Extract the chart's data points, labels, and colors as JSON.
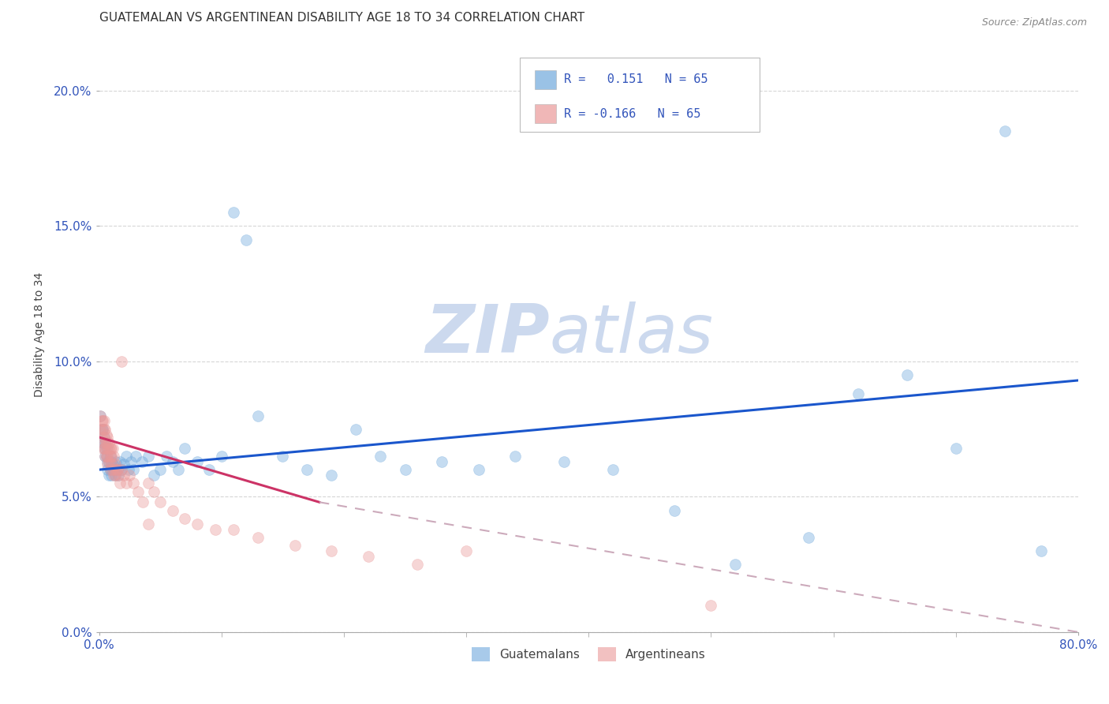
{
  "title": "GUATEMALAN VS ARGENTINEAN DISABILITY AGE 18 TO 34 CORRELATION CHART",
  "source": "Source: ZipAtlas.com",
  "ylabel": "Disability Age 18 to 34",
  "xlim": [
    0,
    0.8
  ],
  "ylim": [
    0,
    0.22
  ],
  "xticks": [
    0.0,
    0.8
  ],
  "xticklabels": [
    "0.0%",
    "80.0%"
  ],
  "yticks": [
    0.0,
    0.05,
    0.1,
    0.15,
    0.2
  ],
  "yticklabels": [
    "0.0%",
    "5.0%",
    "10.0%",
    "15.0%",
    "20.0%"
  ],
  "guatemalan_color": "#6fa8dc",
  "argentinean_color": "#ea9999",
  "guatemalan_trend_color": "#1a56cc",
  "argentinean_trend_color": "#cc3366",
  "argentinean_trend_dashed_color": "#ccaabb",
  "background_color": "#ffffff",
  "grid_color": "#cccccc",
  "watermark_zip": "ZIP",
  "watermark_atlas": "atlas",
  "watermark_color": "#ccd9ee",
  "r_guatemalan": 0.151,
  "n_guatemalan": 65,
  "r_argentinean": -0.166,
  "n_argentinean": 65,
  "guatemalan_x": [
    0.001,
    0.002,
    0.003,
    0.003,
    0.004,
    0.004,
    0.005,
    0.005,
    0.006,
    0.006,
    0.007,
    0.007,
    0.008,
    0.008,
    0.009,
    0.009,
    0.01,
    0.01,
    0.011,
    0.012,
    0.013,
    0.014,
    0.015,
    0.016,
    0.017,
    0.018,
    0.02,
    0.022,
    0.024,
    0.026,
    0.028,
    0.03,
    0.035,
    0.04,
    0.045,
    0.05,
    0.055,
    0.06,
    0.065,
    0.07,
    0.08,
    0.09,
    0.1,
    0.11,
    0.12,
    0.13,
    0.15,
    0.17,
    0.19,
    0.21,
    0.23,
    0.25,
    0.28,
    0.31,
    0.34,
    0.38,
    0.42,
    0.47,
    0.52,
    0.58,
    0.62,
    0.66,
    0.7,
    0.74,
    0.77
  ],
  "guatemalan_y": [
    0.08,
    0.075,
    0.075,
    0.07,
    0.072,
    0.068,
    0.07,
    0.065,
    0.068,
    0.065,
    0.063,
    0.06,
    0.063,
    0.058,
    0.065,
    0.06,
    0.063,
    0.058,
    0.062,
    0.06,
    0.058,
    0.063,
    0.06,
    0.058,
    0.063,
    0.06,
    0.062,
    0.065,
    0.06,
    0.063,
    0.06,
    0.065,
    0.063,
    0.065,
    0.058,
    0.06,
    0.065,
    0.063,
    0.06,
    0.068,
    0.063,
    0.06,
    0.065,
    0.155,
    0.145,
    0.08,
    0.065,
    0.06,
    0.058,
    0.075,
    0.065,
    0.06,
    0.063,
    0.06,
    0.065,
    0.063,
    0.06,
    0.045,
    0.025,
    0.035,
    0.088,
    0.095,
    0.068,
    0.185,
    0.03
  ],
  "argentinean_x": [
    0.001,
    0.001,
    0.002,
    0.002,
    0.003,
    0.003,
    0.003,
    0.004,
    0.004,
    0.004,
    0.004,
    0.005,
    0.005,
    0.005,
    0.005,
    0.006,
    0.006,
    0.006,
    0.007,
    0.007,
    0.007,
    0.007,
    0.008,
    0.008,
    0.008,
    0.009,
    0.009,
    0.009,
    0.01,
    0.01,
    0.01,
    0.011,
    0.011,
    0.012,
    0.012,
    0.013,
    0.013,
    0.014,
    0.015,
    0.016,
    0.017,
    0.018,
    0.02,
    0.022,
    0.025,
    0.028,
    0.032,
    0.036,
    0.04,
    0.045,
    0.05,
    0.06,
    0.07,
    0.08,
    0.095,
    0.11,
    0.13,
    0.16,
    0.19,
    0.22,
    0.26,
    0.3,
    0.04,
    0.018,
    0.5
  ],
  "argentinean_y": [
    0.08,
    0.075,
    0.078,
    0.072,
    0.078,
    0.075,
    0.068,
    0.078,
    0.075,
    0.072,
    0.068,
    0.075,
    0.07,
    0.068,
    0.065,
    0.073,
    0.07,
    0.065,
    0.072,
    0.068,
    0.065,
    0.062,
    0.07,
    0.068,
    0.063,
    0.068,
    0.065,
    0.06,
    0.068,
    0.065,
    0.062,
    0.068,
    0.06,
    0.065,
    0.058,
    0.062,
    0.058,
    0.06,
    0.06,
    0.058,
    0.055,
    0.06,
    0.058,
    0.055,
    0.058,
    0.055,
    0.052,
    0.048,
    0.055,
    0.052,
    0.048,
    0.045,
    0.042,
    0.04,
    0.038,
    0.038,
    0.035,
    0.032,
    0.03,
    0.028,
    0.025,
    0.03,
    0.04,
    0.1,
    0.01
  ],
  "trend_guat_x0": 0.0,
  "trend_guat_x1": 0.8,
  "trend_guat_y0": 0.06,
  "trend_guat_y1": 0.093,
  "trend_arg_x0": 0.0,
  "trend_arg_x1_solid": 0.18,
  "trend_arg_x1_dashed": 0.8,
  "trend_arg_y0": 0.072,
  "trend_arg_y1_solid": 0.048,
  "trend_arg_y1_dashed": 0.0,
  "legend_guatemalan_label": "Guatemalans",
  "legend_argentinean_label": "Argentineans",
  "title_fontsize": 11,
  "axis_label_fontsize": 10,
  "tick_fontsize": 11,
  "legend_fontsize": 11,
  "source_fontsize": 9,
  "marker_size": 100,
  "marker_alpha": 0.4,
  "title_color": "#333333",
  "tick_color": "#3355bb",
  "legend_value_color": "#3355bb"
}
